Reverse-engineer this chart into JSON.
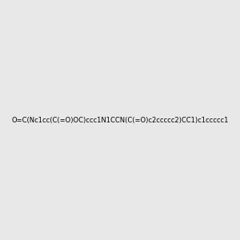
{
  "smiles": "O=C(Nc1cc(C(=O)OC)ccc1N1CCN(C(=O)c2ccccc2)CC1)c1ccccc1",
  "background_color": "#e8e8e8",
  "image_size": 300,
  "title": "",
  "bond_color": "#1a1a1a",
  "atom_colors": {
    "N": "#0000ff",
    "O": "#ff0000",
    "H": "#4ca8a8"
  }
}
